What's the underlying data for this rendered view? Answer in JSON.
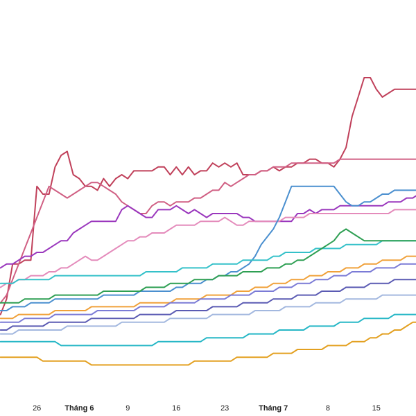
{
  "chart_data": {
    "type": "line",
    "title": "",
    "xlabel": "",
    "ylabel": "",
    "grid": false,
    "legend": "none",
    "x": [
      1,
      2,
      3,
      4,
      5,
      6,
      7,
      8,
      9,
      10,
      11,
      12,
      13,
      14,
      15,
      16,
      17,
      18,
      19,
      20,
      21,
      22,
      23,
      24,
      25,
      26,
      27,
      28,
      29,
      30,
      31,
      32,
      33,
      34,
      35,
      36,
      37,
      38,
      39,
      40,
      41,
      42,
      43,
      44,
      45,
      46,
      47,
      48,
      49,
      50,
      51,
      52,
      53,
      54,
      55,
      56,
      57,
      58,
      59,
      60,
      61,
      62,
      63,
      64,
      65,
      66,
      67,
      68,
      69,
      70
    ],
    "xlim": [
      0,
      70
    ],
    "ylim": [
      0,
      100
    ],
    "x_ticks": [
      {
        "x": 7,
        "label": "26",
        "month": false
      },
      {
        "x": 14,
        "label": "Tháng 6",
        "month": true
      },
      {
        "x": 22,
        "label": "9",
        "month": false
      },
      {
        "x": 30,
        "label": "16",
        "month": false
      },
      {
        "x": 38,
        "label": "23",
        "month": false
      },
      {
        "x": 46,
        "label": "Tháng 7",
        "month": true
      },
      {
        "x": 55,
        "label": "8",
        "month": false
      },
      {
        "x": 63,
        "label": "15",
        "month": false
      }
    ],
    "series": [
      {
        "color": "#c0405a",
        "values": [
          19,
          23,
          32,
          32,
          33,
          33,
          52,
          50,
          50,
          57,
          60,
          61,
          55,
          54,
          52,
          52,
          51,
          54,
          52,
          54,
          55,
          54,
          56,
          56,
          56,
          56,
          57,
          57,
          55,
          57,
          55,
          57,
          55,
          56,
          56,
          58,
          57,
          58,
          57,
          58,
          55,
          55,
          55,
          56,
          56,
          57,
          56,
          57,
          57,
          58,
          58,
          59,
          59,
          58,
          58,
          57,
          59,
          62,
          70,
          75,
          80,
          80,
          77,
          75,
          76,
          77,
          77,
          77,
          77,
          77
        ]
      },
      {
        "color": "#d05f83",
        "values": [
          22,
          24,
          28,
          32,
          36,
          40,
          44,
          48,
          52,
          51,
          50,
          49,
          50,
          51,
          52,
          53,
          53,
          52,
          51,
          50,
          48,
          47,
          46,
          45,
          45,
          47,
          48,
          48,
          47,
          48,
          48,
          48,
          49,
          49,
          50,
          51,
          51,
          53,
          52,
          53,
          54,
          55,
          55,
          56,
          56,
          57,
          57,
          57,
          58,
          58,
          58,
          58,
          58,
          58,
          58,
          58,
          59,
          59,
          59,
          59,
          59,
          59,
          59,
          59,
          59,
          59,
          59,
          59,
          59,
          59
        ]
      },
      {
        "color": "#9a37bd",
        "values": [
          31,
          32,
          32,
          33,
          34,
          34,
          35,
          35,
          36,
          37,
          38,
          38,
          40,
          41,
          42,
          43,
          43,
          43,
          43,
          43,
          46,
          47,
          46,
          45,
          44,
          44,
          46,
          46,
          46,
          47,
          46,
          45,
          46,
          45,
          44,
          45,
          45,
          45,
          45,
          45,
          44,
          44,
          43,
          43,
          43,
          43,
          43,
          43,
          43,
          45,
          45,
          46,
          45,
          46,
          46,
          46,
          47,
          47,
          47,
          47,
          47,
          47,
          47,
          47,
          48,
          48,
          48,
          49,
          49,
          50
        ]
      },
      {
        "color": "#e48bbb",
        "values": [
          26,
          27,
          27,
          28,
          28,
          29,
          29,
          29,
          30,
          30,
          31,
          31,
          32,
          33,
          34,
          33,
          33,
          34,
          35,
          36,
          37,
          38,
          38,
          39,
          39,
          40,
          40,
          40,
          41,
          42,
          42,
          42,
          42,
          43,
          43,
          43,
          43,
          44,
          43,
          42,
          42,
          43,
          43,
          43,
          43,
          43,
          43,
          44,
          44,
          44,
          44,
          45,
          45,
          45,
          45,
          45,
          45,
          45,
          45,
          45,
          45,
          45,
          45,
          45,
          45,
          46,
          46,
          46,
          46,
          46
        ]
      },
      {
        "color": "#4a8fcf",
        "values": [
          20,
          20,
          21,
          21,
          21,
          22,
          22,
          22,
          22,
          23,
          23,
          23,
          23,
          23,
          23,
          23,
          23,
          24,
          24,
          24,
          24,
          24,
          24,
          25,
          25,
          25,
          25,
          25,
          25,
          26,
          26,
          27,
          27,
          27,
          28,
          28,
          29,
          29,
          30,
          30,
          31,
          32,
          34,
          37,
          39,
          41,
          44,
          48,
          52,
          52,
          52,
          52,
          52,
          52,
          52,
          52,
          50,
          48,
          47,
          47,
          48,
          48,
          49,
          50,
          50,
          51,
          51,
          51,
          51,
          51
        ]
      },
      {
        "color": "#35c1c9",
        "values": [
          27,
          27,
          27,
          28,
          28,
          28,
          28,
          28,
          28,
          29,
          29,
          29,
          29,
          29,
          29,
          29,
          29,
          29,
          29,
          29,
          29,
          29,
          29,
          29,
          30,
          30,
          30,
          30,
          30,
          30,
          31,
          31,
          31,
          31,
          31,
          32,
          32,
          32,
          32,
          32,
          33,
          33,
          33,
          33,
          33,
          34,
          34,
          35,
          35,
          35,
          35,
          35,
          36,
          36,
          36,
          36,
          36,
          37,
          37,
          37,
          37,
          37,
          37,
          38,
          38,
          38,
          38,
          38,
          38,
          38
        ]
      },
      {
        "color": "#2e9f53",
        "values": [
          22,
          22,
          22,
          22,
          23,
          23,
          23,
          23,
          23,
          24,
          24,
          24,
          24,
          24,
          24,
          24,
          24,
          25,
          25,
          25,
          25,
          25,
          25,
          25,
          26,
          26,
          26,
          26,
          27,
          27,
          27,
          27,
          28,
          28,
          28,
          28,
          29,
          29,
          29,
          29,
          30,
          30,
          30,
          30,
          31,
          31,
          31,
          32,
          32,
          33,
          33,
          34,
          35,
          36,
          37,
          38,
          40,
          41,
          40,
          39,
          38,
          38,
          38,
          38,
          38,
          38,
          38,
          38,
          38,
          38
        ]
      },
      {
        "color": "#f0a13a",
        "values": [
          18,
          18,
          18,
          19,
          19,
          19,
          19,
          19,
          19,
          20,
          20,
          20,
          20,
          20,
          20,
          21,
          21,
          21,
          21,
          21,
          21,
          21,
          21,
          22,
          22,
          22,
          22,
          22,
          22,
          23,
          23,
          23,
          23,
          23,
          24,
          24,
          24,
          24,
          24,
          25,
          25,
          25,
          26,
          26,
          26,
          27,
          27,
          27,
          28,
          28,
          28,
          29,
          29,
          29,
          30,
          30,
          30,
          31,
          31,
          31,
          32,
          32,
          32,
          33,
          33,
          33,
          33,
          34,
          34,
          34
        ]
      },
      {
        "color": "#7b7bd6",
        "values": [
          17,
          17,
          17,
          17,
          18,
          18,
          18,
          18,
          18,
          19,
          19,
          19,
          19,
          19,
          19,
          19,
          20,
          20,
          20,
          20,
          20,
          20,
          20,
          21,
          21,
          21,
          21,
          21,
          22,
          22,
          22,
          22,
          22,
          23,
          23,
          23,
          23,
          23,
          24,
          24,
          24,
          24,
          25,
          25,
          25,
          25,
          26,
          26,
          26,
          27,
          27,
          27,
          28,
          28,
          28,
          29,
          29,
          29,
          30,
          30,
          30,
          30,
          31,
          31,
          31,
          31,
          32,
          32,
          32,
          32
        ]
      },
      {
        "color": "#5b5bb3",
        "values": [
          15,
          15,
          16,
          16,
          16,
          16,
          16,
          16,
          17,
          17,
          17,
          17,
          17,
          17,
          17,
          18,
          18,
          18,
          18,
          18,
          18,
          18,
          18,
          19,
          19,
          19,
          19,
          19,
          19,
          20,
          20,
          20,
          20,
          20,
          20,
          21,
          21,
          21,
          21,
          21,
          22,
          22,
          22,
          22,
          22,
          23,
          23,
          23,
          23,
          24,
          24,
          24,
          24,
          25,
          25,
          25,
          25,
          26,
          26,
          26,
          26,
          27,
          27,
          27,
          27,
          28,
          28,
          28,
          28,
          28
        ]
      },
      {
        "color": "#a3b8df",
        "values": [
          14,
          14,
          14,
          15,
          15,
          15,
          15,
          15,
          15,
          15,
          15,
          16,
          16,
          16,
          16,
          16,
          16,
          16,
          16,
          16,
          17,
          17,
          17,
          17,
          17,
          17,
          17,
          17,
          18,
          18,
          18,
          18,
          18,
          18,
          18,
          19,
          19,
          19,
          19,
          19,
          19,
          19,
          20,
          20,
          20,
          20,
          20,
          21,
          21,
          21,
          21,
          21,
          22,
          22,
          22,
          22,
          22,
          23,
          23,
          23,
          23,
          23,
          23,
          24,
          24,
          24,
          24,
          24,
          24,
          24
        ]
      },
      {
        "color": "#26b7c6",
        "values": [
          12,
          12,
          12,
          12,
          12,
          12,
          12,
          12,
          12,
          12,
          11,
          11,
          11,
          11,
          11,
          11,
          11,
          11,
          11,
          11,
          11,
          11,
          11,
          11,
          11,
          11,
          12,
          12,
          12,
          12,
          12,
          12,
          12,
          12,
          13,
          13,
          13,
          13,
          13,
          13,
          13,
          14,
          14,
          14,
          14,
          14,
          15,
          15,
          15,
          15,
          15,
          16,
          16,
          16,
          16,
          16,
          17,
          17,
          17,
          17,
          18,
          18,
          18,
          18,
          18,
          19,
          19,
          19,
          19,
          19
        ]
      },
      {
        "color": "#e3a020",
        "values": [
          8,
          8,
          8,
          8,
          8,
          8,
          8,
          7,
          7,
          7,
          7,
          7,
          7,
          7,
          7,
          6,
          6,
          6,
          6,
          6,
          6,
          6,
          6,
          6,
          6,
          6,
          6,
          6,
          6,
          6,
          6,
          6,
          7,
          7,
          7,
          7,
          7,
          7,
          7,
          8,
          8,
          8,
          8,
          8,
          8,
          9,
          9,
          9,
          9,
          10,
          10,
          10,
          10,
          10,
          11,
          11,
          11,
          11,
          12,
          12,
          12,
          13,
          13,
          14,
          14,
          15,
          15,
          16,
          17,
          17
        ]
      }
    ]
  }
}
